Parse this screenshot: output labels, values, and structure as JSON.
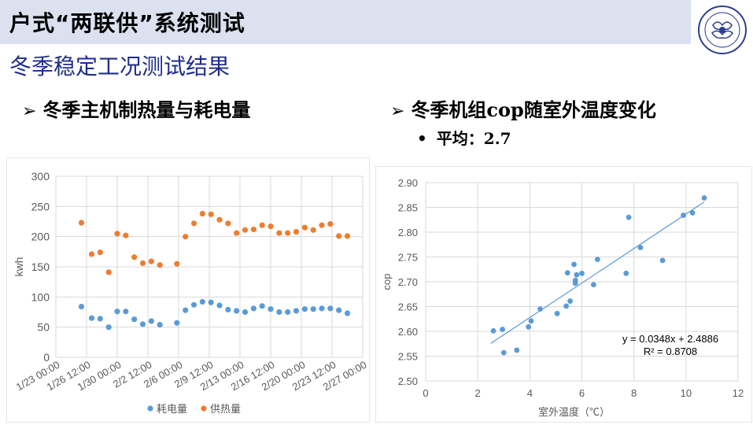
{
  "header": {
    "title": "户式“两联供”系统测试"
  },
  "section": {
    "title": "冬季稳定工况测试结果"
  },
  "left": {
    "bullet": "冬季主机制热量与耗电量",
    "arrow": "➢"
  },
  "right": {
    "bullet": "冬季机组cop随室外温度变化",
    "arrow": "➢",
    "avg_dot": "•",
    "avg": "平均：2.7"
  },
  "colors": {
    "header_bg": "#dbe1ef",
    "section_title": "#1f2d8a",
    "blue": "#5b9bd5",
    "orange": "#ed7d31",
    "grid": "#d9d9d9",
    "trend": "#5b9bd5"
  },
  "chart_data": [
    {
      "type": "scatter",
      "ylabel": "kwh",
      "ylim": [
        0,
        300
      ],
      "yticks": [
        0,
        50,
        100,
        150,
        200,
        250,
        300
      ],
      "xlim": [
        0,
        36
      ],
      "xtick_labels": [
        "1/23 00:00",
        "1/26 12:00",
        "1/30 00:00",
        "2/2 12:00",
        "2/6 00:00",
        "2/9 12:00",
        "2/13 00:00",
        "2/16 12:00",
        "2/20 00:00",
        "2/23 12:00",
        "2/27 00:00"
      ],
      "grid": true,
      "legend": "bottom",
      "series": [
        {
          "name": "耗电量",
          "x": [
            3,
            4.2,
            5.2,
            6.2,
            7.2,
            8.2,
            9.2,
            10.2,
            11.2,
            12.2,
            14.2,
            15.2,
            16.2,
            17.2,
            18.2,
            19.2,
            20.2,
            21.2,
            22.2,
            23.2,
            24.2,
            25.2,
            26.2,
            27.2,
            28.2,
            29.2,
            30.2,
            31.2,
            32.2,
            33.2,
            34.2
          ],
          "y": [
            84,
            65,
            64,
            50,
            76,
            76,
            63,
            55,
            60,
            54,
            57,
            78,
            87,
            92,
            91,
            86,
            79,
            77,
            75,
            81,
            85,
            80,
            75,
            75,
            77,
            80,
            80,
            81,
            81,
            78,
            73
          ]
        },
        {
          "name": "供热量",
          "x": [
            3,
            4.2,
            5.2,
            6.2,
            7.2,
            8.2,
            9.2,
            10.2,
            11.2,
            12.2,
            14.2,
            15.2,
            16.2,
            17.2,
            18.2,
            19.2,
            20.2,
            21.2,
            22.2,
            23.2,
            24.2,
            25.2,
            26.2,
            27.2,
            28.2,
            29.2,
            30.2,
            31.2,
            32.2,
            33.2,
            34.2
          ],
          "y": [
            223,
            171,
            174,
            141,
            205,
            202,
            166,
            156,
            159,
            153,
            155,
            200,
            222,
            238,
            237,
            228,
            222,
            206,
            211,
            212,
            219,
            217,
            206,
            206,
            208,
            215,
            211,
            219,
            221,
            201,
            201
          ]
        }
      ]
    },
    {
      "type": "scatter",
      "xlabel": "室外温度（℃）",
      "ylabel": "cop",
      "xlim": [
        0,
        12
      ],
      "ylim": [
        2.5,
        2.9
      ],
      "xticks": [
        0,
        2,
        4,
        6,
        8,
        10,
        12
      ],
      "yticks": [
        "2.50",
        "2.55",
        "2.60",
        "2.65",
        "2.70",
        "2.75",
        "2.80",
        "2.85",
        "2.90"
      ],
      "grid": true,
      "trendline": {
        "equation": "y = 0.0348x + 2.4886",
        "r2": "R² = 0.8708",
        "slope": 0.0348,
        "intercept": 2.4886,
        "x_range": [
          2.5,
          10.7
        ]
      },
      "points": {
        "x": [
          2.6,
          2.95,
          3.0,
          3.5,
          3.95,
          4.05,
          4.4,
          5.05,
          5.4,
          5.45,
          5.55,
          5.7,
          5.75,
          5.75,
          5.8,
          6.0,
          6.45,
          6.6,
          7.7,
          7.8,
          8.25,
          9.1,
          9.9,
          10.25,
          10.7
        ],
        "y": [
          2.601,
          2.604,
          2.557,
          2.562,
          2.609,
          2.621,
          2.645,
          2.636,
          2.651,
          2.718,
          2.661,
          2.735,
          2.703,
          2.697,
          2.714,
          2.717,
          2.694,
          2.745,
          2.717,
          2.83,
          2.769,
          2.743,
          2.834,
          2.839,
          2.869
        ]
      }
    }
  ]
}
